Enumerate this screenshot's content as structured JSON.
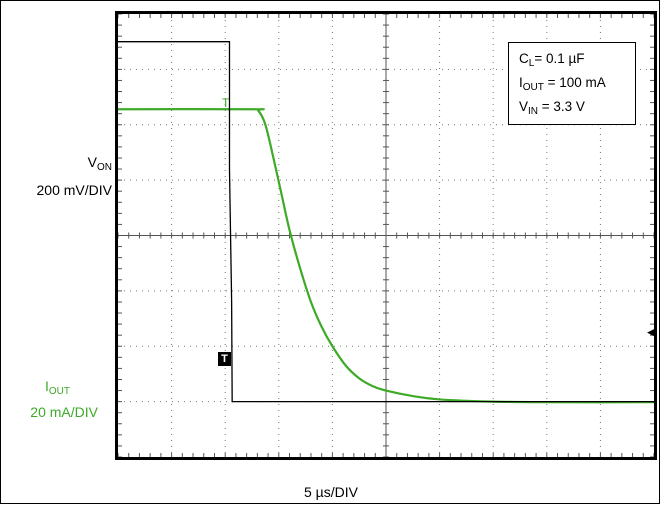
{
  "chart_data": {
    "type": "line",
    "xlabel": "5 µs/DIV",
    "x_divisions": 10,
    "y_divisions": 8,
    "x_range_div": [
      0,
      10
    ],
    "y_range_div": [
      -4,
      4
    ],
    "grid": true,
    "series": [
      {
        "name_main": "V",
        "name_sub": "ON",
        "scale": "200 mV/DIV",
        "color": "#000000",
        "points_div": [
          [
            0,
            3.5
          ],
          [
            2.08,
            3.5
          ],
          [
            2.08,
            1.2
          ],
          [
            2.12,
            -1.2
          ],
          [
            2.13,
            -3.0
          ],
          [
            2.2,
            -3.0
          ],
          [
            10,
            -3.0
          ]
        ]
      },
      {
        "name_main": "I",
        "name_sub": "OUT",
        "scale": "20 mA/DIV",
        "color": "#3daa28",
        "points_div": [
          [
            0,
            2.28
          ],
          [
            2.5,
            2.28
          ],
          [
            2.62,
            2.25
          ],
          [
            2.75,
            2.0
          ],
          [
            2.9,
            1.4
          ],
          [
            3.05,
            0.75
          ],
          [
            3.2,
            0.1
          ],
          [
            3.4,
            -0.6
          ],
          [
            3.6,
            -1.2
          ],
          [
            3.8,
            -1.65
          ],
          [
            4.0,
            -2.0
          ],
          [
            4.25,
            -2.35
          ],
          [
            4.5,
            -2.58
          ],
          [
            4.75,
            -2.72
          ],
          [
            5.0,
            -2.8
          ],
          [
            5.5,
            -2.9
          ],
          [
            6.0,
            -2.96
          ],
          [
            7.0,
            -3.0
          ],
          [
            8.0,
            -3.01
          ],
          [
            10.0,
            -3.01
          ]
        ]
      }
    ],
    "conditions": [
      {
        "sym": "C",
        "sub": "L",
        "val": "= 0.1 µF"
      },
      {
        "sym": "I",
        "sub": "OUT",
        "val": " = 100 mA"
      },
      {
        "sym": "V",
        "sub": "IN",
        "val": " = 3.3 V"
      }
    ],
    "trigger_markers": [
      "T",
      "T"
    ]
  }
}
